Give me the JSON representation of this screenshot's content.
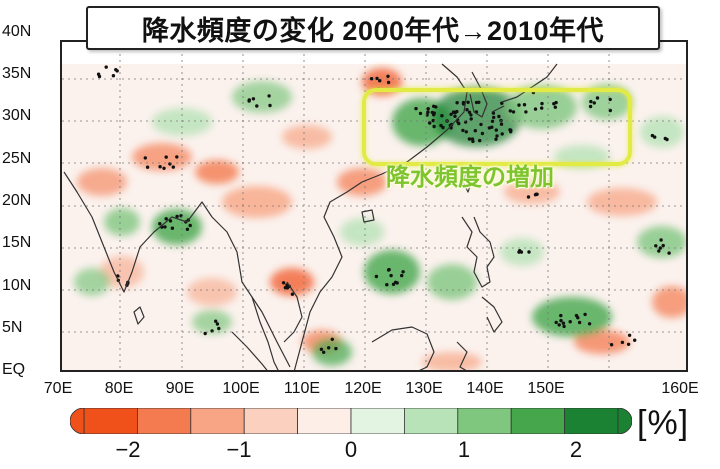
{
  "title": "降水頻度の変化 2000年代→2010年代",
  "highlight": {
    "label": "降水頻度の増加"
  },
  "lat_labels": [
    "40N",
    "35N",
    "30N",
    "25N",
    "20N",
    "15N",
    "10N",
    "5N",
    "EQ"
  ],
  "lon_labels": [
    "70E",
    "80E",
    "90E",
    "100E",
    "110E",
    "120E",
    "130E",
    "140E",
    "150E",
    "160E"
  ],
  "colorbar": {
    "ticks": [
      "−2",
      "−1",
      "0",
      "1",
      "2"
    ],
    "unit": "[%]",
    "colors": [
      "#f0501a",
      "#f47a50",
      "#f7a585",
      "#fbd0bf",
      "#fdeee8",
      "#e3f4e3",
      "#b8e2b7",
      "#7fc67f",
      "#45a64c",
      "#1a8232"
    ]
  },
  "colors": {
    "increase": "#2f9a45",
    "decrease": "#ef6a3e",
    "highlight": "#e2ea45",
    "highlight_text": "#7ec42c"
  }
}
